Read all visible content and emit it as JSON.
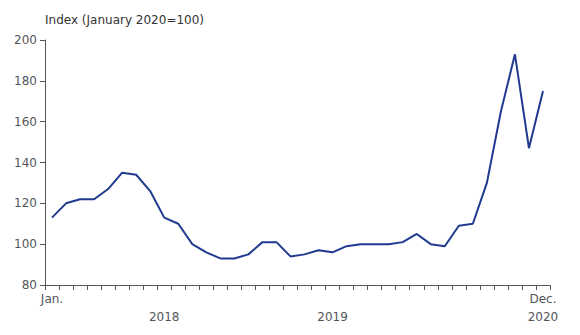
{
  "chart_data": {
    "type": "line",
    "ylabel": "Index (January 2020=100)",
    "categories": [
      "Jan.",
      null,
      null,
      null,
      null,
      null,
      null,
      null,
      null,
      null,
      null,
      null,
      null,
      null,
      null,
      null,
      null,
      null,
      null,
      null,
      null,
      null,
      null,
      null,
      null,
      null,
      null,
      null,
      null,
      null,
      null,
      null,
      null,
      null,
      null,
      "Dec."
    ],
    "values": [
      113,
      120,
      122,
      122,
      127,
      135,
      134,
      126,
      113,
      110,
      100,
      96,
      93,
      93,
      95,
      101,
      101,
      94,
      95,
      97,
      96,
      99,
      100,
      100,
      100,
      101,
      105,
      100,
      99,
      109,
      110,
      130,
      165,
      193,
      147,
      175
    ],
    "color": "#1F3A8F",
    "ylim": [
      80,
      200
    ],
    "yticks": [
      80,
      100,
      120,
      140,
      160,
      180,
      200
    ],
    "grid": false,
    "annotations": [
      {
        "text": "2018",
        "x": 8
      },
      {
        "text": "2019",
        "x": 20
      },
      {
        "text": "2020",
        "x": 35
      }
    ]
  }
}
